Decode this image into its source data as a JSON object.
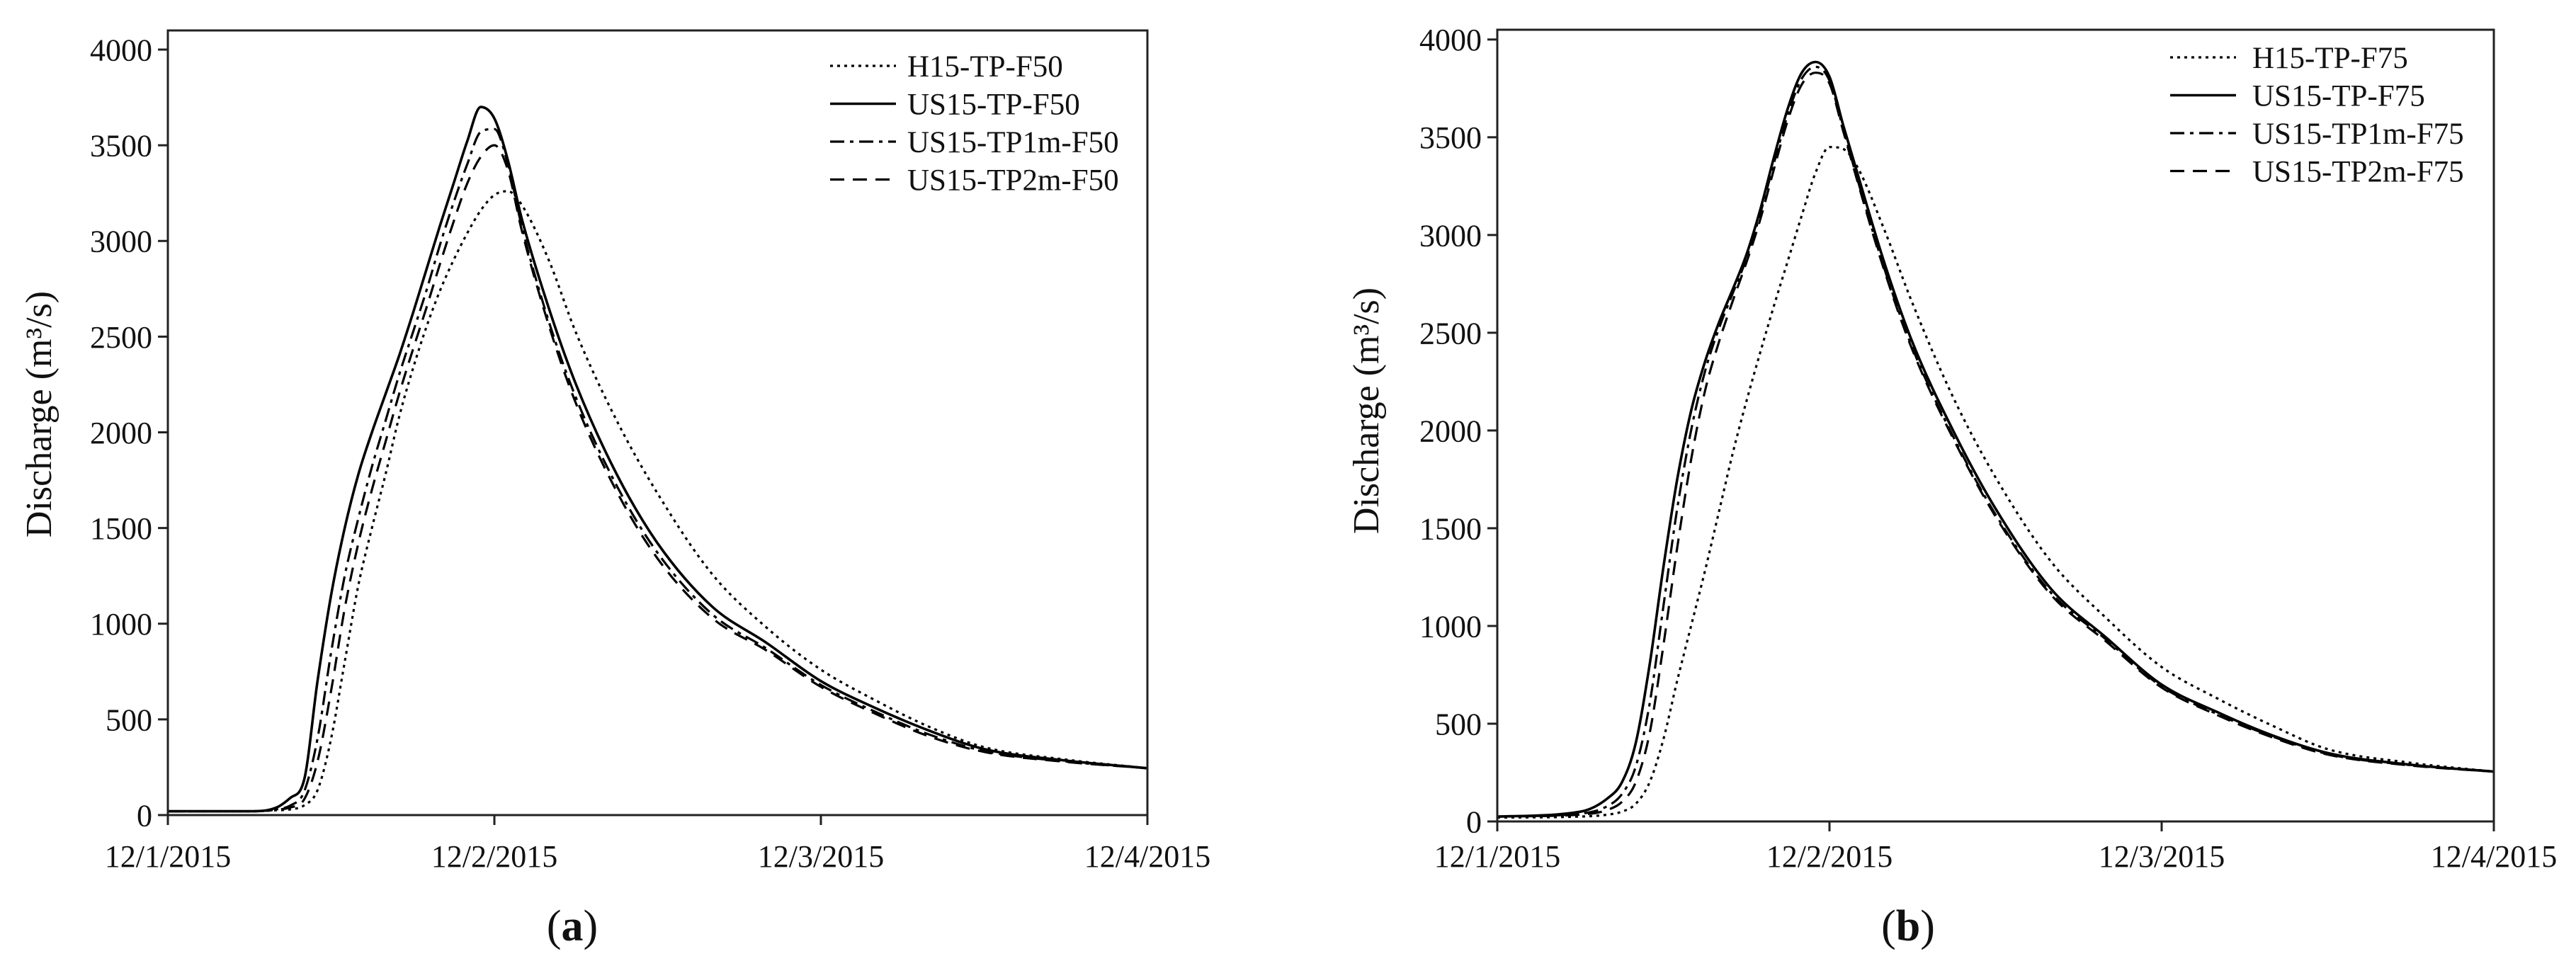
{
  "chart_data": [
    {
      "type": "line",
      "panel_label": "(a)",
      "ylabel": "Discharge (m³/s)",
      "xlim": [
        "12/1/2015",
        "12/4/2015"
      ],
      "x_ticks": [
        "12/1/2015",
        "12/2/2015",
        "12/3/2015",
        "12/4/2015"
      ],
      "ylim": [
        0,
        4100
      ],
      "y_ticks": [
        0,
        500,
        1000,
        1500,
        2000,
        2500,
        3000,
        3500,
        4000
      ],
      "grid": false,
      "legend_position": "top-right",
      "x": [
        "12/1/2015 00:00",
        "12/1/2015 06:00",
        "12/1/2015 08:00",
        "12/1/2015 09:00",
        "12/1/2015 10:00",
        "12/1/2015 11:00",
        "12/1/2015 12:00",
        "12/1/2015 13:00",
        "12/1/2015 14:00",
        "12/1/2015 15:00",
        "12/1/2015 16:00",
        "12/1/2015 17:00",
        "12/1/2015 18:00",
        "12/1/2015 19:00",
        "12/1/2015 20:00",
        "12/1/2015 21:00",
        "12/1/2015 22:00",
        "12/1/2015 23:00",
        "12/2/2015 00:00",
        "12/2/2015 01:00",
        "12/2/2015 02:00",
        "12/2/2015 04:00",
        "12/2/2015 06:00",
        "12/2/2015 09:00",
        "12/2/2015 12:00",
        "12/2/2015 16:00",
        "12/2/2015 20:00",
        "12/3/2015 00:00",
        "12/3/2015 04:00",
        "12/3/2015 08:00",
        "12/3/2015 12:00",
        "12/3/2015 18:00",
        "12/4/2015 00:00"
      ],
      "series": [
        {
          "name": "H15-TP-F50",
          "line_style": "dotted",
          "color": "#000000",
          "values": [
            20,
            20,
            25,
            30,
            50,
            130,
            400,
            800,
            1200,
            1500,
            1780,
            2080,
            2330,
            2550,
            2740,
            2900,
            3040,
            3160,
            3240,
            3260,
            3190,
            2900,
            2520,
            2060,
            1680,
            1260,
            980,
            760,
            600,
            460,
            355,
            290,
            245
          ]
        },
        {
          "name": "US15-TP-F50",
          "line_style": "solid",
          "color": "#000000",
          "values": [
            20,
            20,
            40,
            90,
            180,
            700,
            1150,
            1500,
            1780,
            2000,
            2200,
            2400,
            2620,
            2850,
            3080,
            3300,
            3520,
            3700,
            3640,
            3420,
            3120,
            2650,
            2250,
            1780,
            1420,
            1090,
            900,
            700,
            560,
            440,
            345,
            285,
            245
          ]
        },
        {
          "name": "US15-TP1m-F50",
          "line_style": "dashdot",
          "color": "#000000",
          "values": [
            20,
            20,
            30,
            50,
            120,
            400,
            850,
            1250,
            1550,
            1820,
            2060,
            2300,
            2520,
            2740,
            2980,
            3200,
            3400,
            3570,
            3585,
            3400,
            3080,
            2580,
            2180,
            1720,
            1370,
            1050,
            870,
            680,
            540,
            420,
            335,
            280,
            245
          ]
        },
        {
          "name": "US15-TP2m-F50",
          "line_style": "dashed",
          "color": "#000000",
          "values": [
            20,
            20,
            28,
            40,
            80,
            280,
            650,
            1080,
            1420,
            1700,
            1950,
            2200,
            2430,
            2650,
            2880,
            3100,
            3300,
            3440,
            3500,
            3370,
            3060,
            2560,
            2150,
            1690,
            1340,
            1030,
            860,
            670,
            530,
            410,
            330,
            278,
            245
          ]
        }
      ]
    },
    {
      "type": "line",
      "panel_label": "(b)",
      "ylabel": "Discharge (m³/s)",
      "xlim": [
        "12/1/2015",
        "12/4/2015"
      ],
      "x_ticks": [
        "12/1/2015",
        "12/2/2015",
        "12/3/2015",
        "12/4/2015"
      ],
      "ylim": [
        0,
        4050
      ],
      "y_ticks": [
        0,
        500,
        1000,
        1500,
        2000,
        2500,
        3000,
        3500,
        4000
      ],
      "grid": false,
      "legend_position": "top-right",
      "x": [
        "12/1/2015 00:00",
        "12/1/2015 06:00",
        "12/1/2015 08:00",
        "12/1/2015 09:00",
        "12/1/2015 10:00",
        "12/1/2015 11:00",
        "12/1/2015 12:00",
        "12/1/2015 13:00",
        "12/1/2015 14:00",
        "12/1/2015 15:00",
        "12/1/2015 16:00",
        "12/1/2015 17:00",
        "12/1/2015 18:00",
        "12/1/2015 19:00",
        "12/1/2015 20:00",
        "12/1/2015 21:00",
        "12/1/2015 22:00",
        "12/1/2015 23:00",
        "12/2/2015 00:00",
        "12/2/2015 01:00",
        "12/2/2015 02:00",
        "12/2/2015 04:00",
        "12/2/2015 06:00",
        "12/2/2015 09:00",
        "12/2/2015 12:00",
        "12/2/2015 16:00",
        "12/2/2015 20:00",
        "12/3/2015 00:00",
        "12/3/2015 04:00",
        "12/3/2015 08:00",
        "12/3/2015 12:00",
        "12/3/2015 18:00",
        "12/4/2015 00:00"
      ],
      "series": [
        {
          "name": "H15-TP-F75",
          "line_style": "dotted",
          "color": "#000000",
          "values": [
            20,
            25,
            35,
            50,
            90,
            200,
            420,
            720,
            1000,
            1280,
            1580,
            1880,
            2150,
            2400,
            2640,
            2870,
            3100,
            3320,
            3450,
            3440,
            3350,
            3020,
            2650,
            2160,
            1760,
            1330,
            1040,
            790,
            630,
            490,
            370,
            300,
            255
          ]
        },
        {
          "name": "US15-TP-F75",
          "line_style": "solid",
          "color": "#000000",
          "values": [
            25,
            50,
            120,
            200,
            400,
            800,
            1300,
            1750,
            2100,
            2350,
            2550,
            2720,
            2900,
            3130,
            3400,
            3650,
            3830,
            3885,
            3810,
            3560,
            3320,
            2850,
            2450,
            1990,
            1600,
            1190,
            940,
            700,
            560,
            440,
            350,
            290,
            255
          ]
        },
        {
          "name": "US15-TP1m-F75",
          "line_style": "dashdot",
          "color": "#000000",
          "values": [
            25,
            40,
            80,
            140,
            280,
            600,
            1100,
            1600,
            2000,
            2300,
            2520,
            2700,
            2880,
            3110,
            3370,
            3620,
            3800,
            3860,
            3790,
            3540,
            3290,
            2820,
            2420,
            1960,
            1570,
            1170,
            930,
            690,
            550,
            435,
            345,
            288,
            255
          ]
        },
        {
          "name": "US15-TP2m-F75",
          "line_style": "dashed",
          "color": "#000000",
          "values": [
            25,
            35,
            60,
            100,
            200,
            450,
            900,
            1400,
            1850,
            2200,
            2450,
            2660,
            2860,
            3080,
            3340,
            3590,
            3770,
            3830,
            3775,
            3530,
            3280,
            2810,
            2410,
            1950,
            1560,
            1160,
            920,
            685,
            545,
            430,
            342,
            286,
            255
          ]
        }
      ]
    }
  ]
}
